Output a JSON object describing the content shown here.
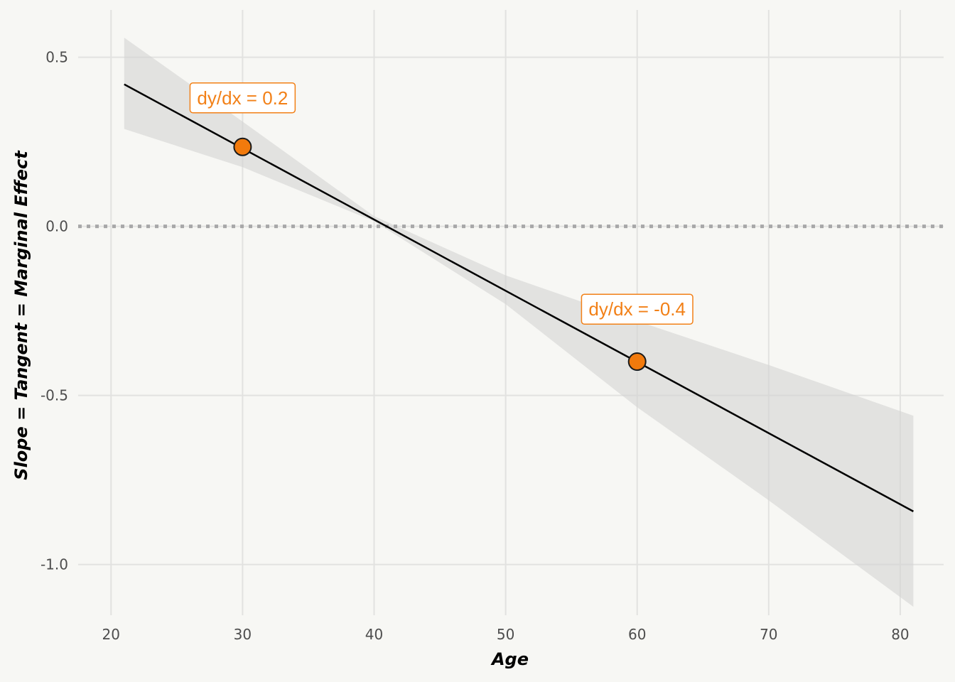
{
  "chart_data": {
    "type": "line",
    "title": "",
    "xlabel": "Age",
    "ylabel": "Slope = Tangent = Marginal Effect",
    "xlim": [
      17.5,
      83.3
    ],
    "ylim": [
      -1.15,
      0.64
    ],
    "x_ticks": [
      20,
      30,
      40,
      50,
      60,
      70,
      80
    ],
    "x_tick_labels": [
      "20",
      "30",
      "40",
      "50",
      "60",
      "70",
      "80"
    ],
    "y_ticks": [
      0.5,
      0.0,
      -0.5,
      -1.0
    ],
    "y_tick_labels": [
      "0.5",
      "0.0",
      "-0.5",
      "-1.0"
    ],
    "grid": true,
    "legend": "none",
    "series": [
      {
        "x": [
          21,
          81
        ],
        "y": [
          0.42,
          -0.843
        ],
        "color": "#000000"
      }
    ],
    "ribbon": {
      "x": [
        21,
        30,
        40,
        50,
        60,
        70,
        81
      ],
      "lower": [
        0.288,
        0.175,
        0.015,
        -0.23,
        -0.535,
        -0.81,
        -1.125
      ],
      "upper": [
        0.558,
        0.31,
        0.03,
        -0.145,
        -0.28,
        -0.41,
        -0.56
      ],
      "color": "#d3d4d2"
    },
    "reference_line": {
      "y": 0.0,
      "style": "dotted",
      "color": "#a8a8a8"
    },
    "points": [
      {
        "x": 30,
        "y": 0.235,
        "color": "#f27a0c"
      },
      {
        "x": 60,
        "y": -0.4,
        "color": "#f27a0c"
      }
    ],
    "annotations": [
      {
        "x": 30,
        "y": 0.38,
        "text": "dy/dx = 0.2",
        "color": "#f28017"
      },
      {
        "x": 60,
        "y": -0.245,
        "text": "dy/dx = -0.4",
        "color": "#f28017"
      }
    ]
  }
}
